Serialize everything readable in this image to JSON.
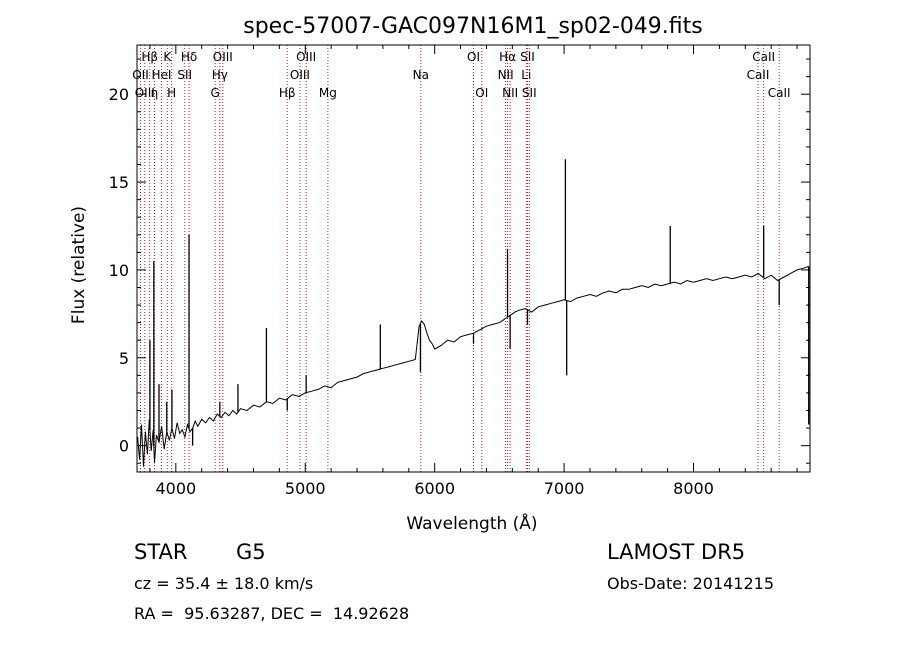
{
  "chart_data": {
    "type": "line",
    "title": "spec-57007-GAC097N16M1_sp02-049.fits",
    "xlabel": "Wavelength (Å)",
    "ylabel": "Flux (relative)",
    "xlim": [
      3700,
      8900
    ],
    "ylim": [
      -1.5,
      22.8
    ],
    "xticks": [
      4000,
      5000,
      6000,
      7000,
      8000
    ],
    "yticks": [
      0,
      5,
      10,
      15,
      20
    ],
    "grid": false,
    "legend": "none",
    "line_color": "#000000",
    "marker_color": "#b22222",
    "series": [
      {
        "x": [
          3705,
          3720,
          3735,
          3750,
          3765,
          3780,
          3795,
          3810,
          3825,
          3835,
          3850,
          3870,
          3890,
          3910,
          3930,
          3950,
          3970,
          3990,
          4010,
          4030,
          4050,
          4070,
          4090,
          4110,
          4130,
          4150,
          4170,
          4200,
          4230,
          4260,
          4290,
          4320,
          4350,
          4380,
          4410,
          4440,
          4470,
          4500,
          4550,
          4600,
          4650,
          4700,
          4750,
          4800,
          4850,
          4900,
          4950,
          5000,
          5050,
          5100,
          5150,
          5200,
          5250,
          5300,
          5350,
          5400,
          5450,
          5500,
          5550,
          5600,
          5650,
          5700,
          5750,
          5800,
          5850,
          5880,
          5900,
          5920,
          5940,
          5960,
          5980,
          6000,
          6050,
          6100,
          6150,
          6200,
          6250,
          6300,
          6350,
          6400,
          6450,
          6500,
          6520,
          6540,
          6560,
          6580,
          6600,
          6620,
          6650,
          6700,
          6750,
          6800,
          6850,
          6900,
          6950,
          7000,
          7050,
          7100,
          7150,
          7200,
          7250,
          7300,
          7350,
          7400,
          7450,
          7500,
          7550,
          7600,
          7650,
          7700,
          7750,
          7800,
          7850,
          7900,
          7950,
          8000,
          8050,
          8100,
          8150,
          8200,
          8250,
          8300,
          8350,
          8400,
          8450,
          8500,
          8550,
          8600,
          8650,
          8700,
          8750,
          8800,
          8850,
          8890
        ],
        "y": [
          0.5,
          -0.8,
          1.2,
          -1.2,
          0.8,
          -0.5,
          1.5,
          -0.3,
          0.9,
          -1.0,
          0.6,
          0.2,
          1.1,
          -0.2,
          0.8,
          0.3,
          1.0,
          0.4,
          1.3,
          0.7,
          0.9,
          0.5,
          1.2,
          0.8,
          1.0,
          1.4,
          1.1,
          1.5,
          1.3,
          1.6,
          1.4,
          1.8,
          1.6,
          1.9,
          1.7,
          2.0,
          1.8,
          2.1,
          2.0,
          2.3,
          2.2,
          2.5,
          2.4,
          2.7,
          2.6,
          2.9,
          2.8,
          3.0,
          3.1,
          3.2,
          3.4,
          3.3,
          3.6,
          3.7,
          3.8,
          3.9,
          4.1,
          4.2,
          4.3,
          4.4,
          4.5,
          4.6,
          4.7,
          4.8,
          4.9,
          6.8,
          7.1,
          6.9,
          6.4,
          6.0,
          5.8,
          5.5,
          5.7,
          6.0,
          5.9,
          6.2,
          6.3,
          6.4,
          6.6,
          6.8,
          6.9,
          7.0,
          7.1,
          7.2,
          7.3,
          7.4,
          7.5,
          7.6,
          7.7,
          7.8,
          7.6,
          7.9,
          8.0,
          8.1,
          8.2,
          8.3,
          8.2,
          8.4,
          8.5,
          8.6,
          8.5,
          8.7,
          8.8,
          8.7,
          8.9,
          8.9,
          9.0,
          9.1,
          9.0,
          9.2,
          9.1,
          9.2,
          9.3,
          9.2,
          9.4,
          9.3,
          9.4,
          9.5,
          9.4,
          9.5,
          9.6,
          9.5,
          9.6,
          9.7,
          9.6,
          9.8,
          9.5,
          9.7,
          9.4,
          9.6,
          9.8,
          10.0,
          10.1,
          10.2
        ]
      },
      {
        "x": [
          3800,
          3830,
          3870,
          3930,
          3970,
          4102,
          4130,
          4340,
          4480,
          4700,
          4861,
          5007,
          5580,
          5890,
          6300,
          6364,
          6563,
          6583,
          6717,
          7010,
          7020,
          7820,
          8542,
          8662,
          8890
        ],
        "y": [
          6.0,
          10.5,
          3.5,
          2.5,
          3.2,
          12.0,
          0.0,
          2.5,
          3.5,
          6.7,
          2.0,
          4.0,
          6.9,
          4.2,
          5.8,
          6.6,
          11.2,
          5.5,
          6.9,
          16.3,
          4.0,
          12.5,
          12.5,
          8.0,
          1.2
        ]
      }
    ],
    "line_markers": [
      {
        "label": "Hβ",
        "x": 3798,
        "row": 0
      },
      {
        "label": "OII",
        "x": 3727,
        "row": 1
      },
      {
        "label": "OIII",
        "x": 3760,
        "row": 2
      },
      {
        "label": "η",
        "x": 3835,
        "row": 2
      },
      {
        "label": "K",
        "x": 3934,
        "row": 0
      },
      {
        "label": "HeI",
        "x": 3889,
        "row": 1
      },
      {
        "label": "H",
        "x": 3968,
        "row": 2
      },
      {
        "label": "Hδ",
        "x": 4102,
        "row": 0
      },
      {
        "label": "SII",
        "x": 4069,
        "row": 1
      },
      {
        "label": "OIII",
        "x": 4363,
        "row": 0
      },
      {
        "label": "Hγ",
        "x": 4340,
        "row": 1
      },
      {
        "label": "G",
        "x": 4304,
        "row": 2
      },
      {
        "label": "OIII",
        "x": 5007,
        "row": 0
      },
      {
        "label": "OIII",
        "x": 4959,
        "row": 1
      },
      {
        "label": "Hβ",
        "x": 4861,
        "row": 2
      },
      {
        "label": "Mg",
        "x": 5175,
        "row": 2
      },
      {
        "label": "Na",
        "x": 5893,
        "row": 1
      },
      {
        "label": "OI",
        "x": 6300,
        "row": 0
      },
      {
        "label": "OI",
        "x": 6364,
        "row": 2
      },
      {
        "label": "Hα",
        "x": 6563,
        "row": 0
      },
      {
        "label": "NII",
        "x": 6548,
        "row": 1
      },
      {
        "label": "NII",
        "x": 6583,
        "row": 2
      },
      {
        "label": "SII",
        "x": 6717,
        "row": 0
      },
      {
        "label": "Li",
        "x": 6708,
        "row": 1
      },
      {
        "label": "SII",
        "x": 6731,
        "row": 2
      },
      {
        "label": "CaII",
        "x": 8542,
        "row": 0
      },
      {
        "label": "CaII",
        "x": 8498,
        "row": 1
      },
      {
        "label": "CaII",
        "x": 8662,
        "row": 2
      }
    ]
  },
  "info": {
    "class": "STAR",
    "subclass": "G5",
    "survey": "LAMOST DR5",
    "cz": "cz = 35.4 ± 18.0 km/s",
    "obs_date": "Obs-Date: 20141215",
    "coords": "RA =  95.63287, DEC =  14.92628"
  }
}
